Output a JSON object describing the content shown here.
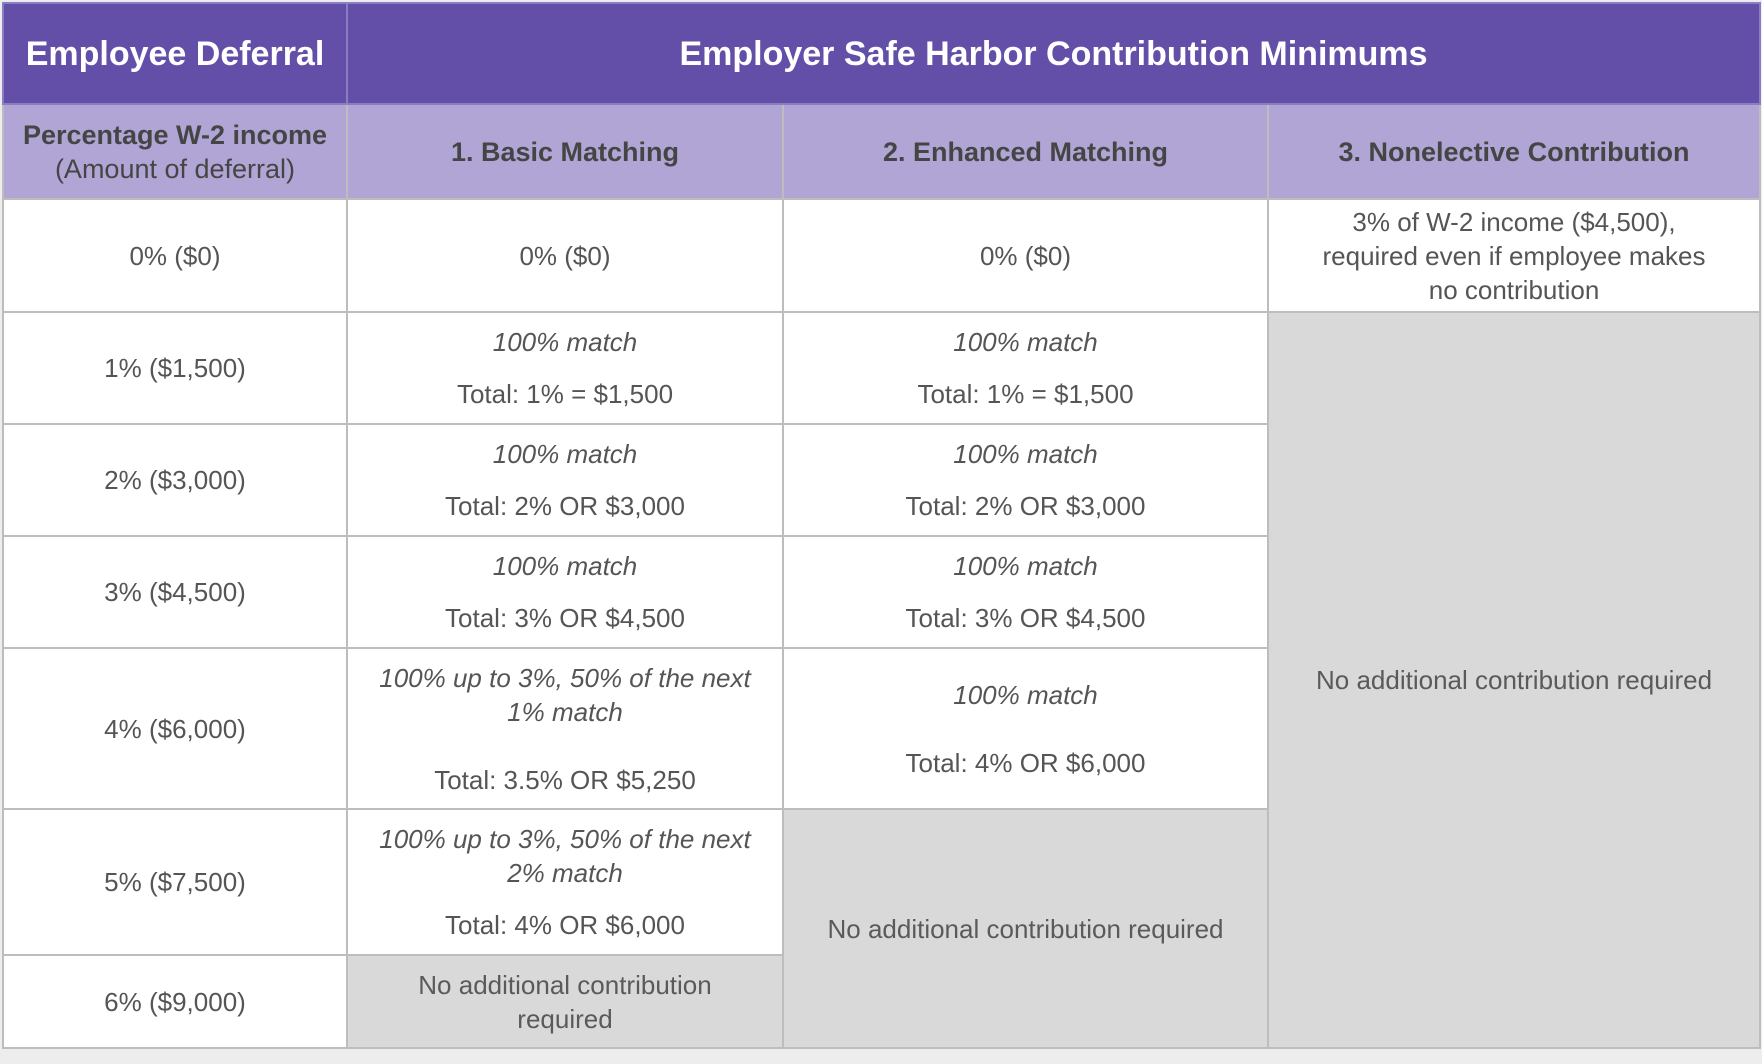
{
  "header": {
    "left": "Employee Deferral",
    "right": "Employer Safe Harbor Contribution Minimums"
  },
  "subheader": {
    "col0_line1": "Percentage W-2 income",
    "col0_line2": "(Amount of deferral)",
    "col1": "1. Basic Matching",
    "col2": "2. Enhanced Matching",
    "col3": "3. Nonelective Contribution"
  },
  "rows": [
    {
      "deferral": "0% ($0)",
      "basic": "0% ($0)",
      "enhanced": "0% ($0)",
      "nonelective": "3% of W-2 income ($4,500), required even if employee makes no contribution"
    },
    {
      "deferral": "1% ($1,500)",
      "basic_match": "100% match",
      "basic_total": "Total:  1% = $1,500",
      "enh_match": "100% match",
      "enh_total": "Total:  1% = $1,500"
    },
    {
      "deferral": "2% ($3,000)",
      "basic_match": "100% match",
      "basic_total": "Total:  2% OR $3,000",
      "enh_match": "100% match",
      "enh_total": "Total:  2% OR $3,000"
    },
    {
      "deferral": "3% ($4,500)",
      "basic_match": "100% match",
      "basic_total": "Total:  3% OR $4,500",
      "enh_match": "100% match",
      "enh_total": "Total:  3% OR $4,500"
    },
    {
      "deferral": "4% ($6,000)",
      "basic_match": "100% up to 3%, 50% of the next 1% match",
      "basic_total": "Total:  3.5% OR $5,250",
      "enh_match": "100% match",
      "enh_total": "Total:  4% OR $6,000"
    },
    {
      "deferral": "5% ($7,500)",
      "basic_match": "100% up to 3%, 50% of the next 2% match",
      "basic_total": "Total:  4% OR $6,000"
    },
    {
      "deferral": "6% ($9,000)",
      "basic_none": "No additional contribution required"
    }
  ],
  "merged": {
    "nonelective_none": "No additional contribution required",
    "enhanced_none": "No additional contribution required"
  },
  "colors": {
    "header_bg": "#644fa8",
    "subheader_bg": "#b1a5d5",
    "grey_cell": "#d9d9d9"
  }
}
